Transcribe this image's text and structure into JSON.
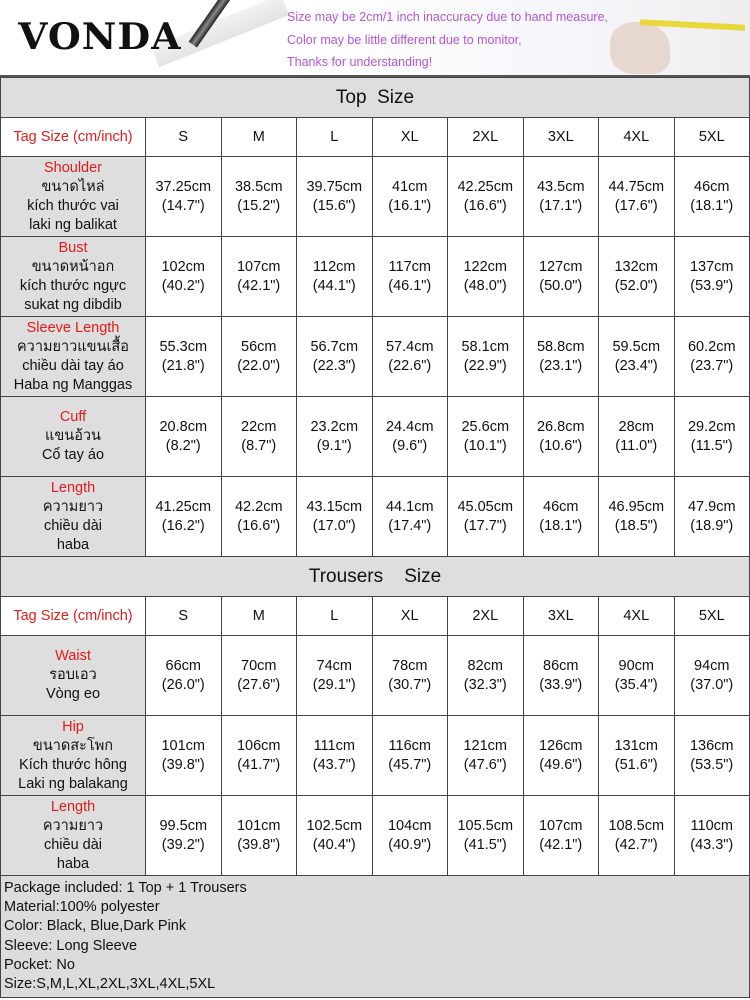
{
  "banner": {
    "logo": "VONDA",
    "notes": [
      "Size may be 2cm/1 inch inaccuracy due to hand measure,",
      "Color may be little different due to monitor,",
      "Thanks for understanding!"
    ],
    "note_color": "#b455d4"
  },
  "sizes": [
    "S",
    "M",
    "L",
    "XL",
    "2XL",
    "3XL",
    "4XL",
    "5XL"
  ],
  "tag_label": "Tag Size (cm/inch)",
  "accent_color": "#e31b1b",
  "tables": [
    {
      "title": "Top  Size",
      "rows": [
        {
          "label": "Shoulder",
          "sub": [
            "ขนาดไหล่",
            "kích thước vai",
            "laki ng balikat"
          ],
          "cm": [
            "37.25cm",
            "38.5cm",
            "39.75cm",
            "41cm",
            "42.25cm",
            "43.5cm",
            "44.75cm",
            "46cm"
          ],
          "inch": [
            "(14.7\")",
            "(15.2\")",
            "(15.6\")",
            "(16.1\")",
            "(16.6\")",
            "(17.1\")",
            "(17.6\")",
            "(18.1\")"
          ]
        },
        {
          "label": "Bust",
          "sub": [
            "ขนาดหน้าอก",
            "kích thước ngực",
            "sukat ng dibdib"
          ],
          "cm": [
            "102cm",
            "107cm",
            "112cm",
            "117cm",
            "122cm",
            "127cm",
            "132cm",
            "137cm"
          ],
          "inch": [
            "(40.2\")",
            "(42.1\")",
            "(44.1\")",
            "(46.1\")",
            "(48.0\")",
            "(50.0\")",
            "(52.0\")",
            "(53.9\")"
          ]
        },
        {
          "label": "Sleeve Length",
          "sub": [
            "ความยาวแขนเสื้อ",
            "chiều dài tay áo",
            "Haba ng Manggas"
          ],
          "cm": [
            "55.3cm",
            "56cm",
            "56.7cm",
            "57.4cm",
            "58.1cm",
            "58.8cm",
            "59.5cm",
            "60.2cm"
          ],
          "inch": [
            "(21.8\")",
            "(22.0\")",
            "(22.3\")",
            "(22.6\")",
            "(22.9\")",
            "(23.1\")",
            "(23.4\")",
            "(23.7\")"
          ]
        },
        {
          "label": "Cuff",
          "sub": [
            "แขนอ้วน",
            "Cổ tay áo"
          ],
          "cm": [
            "20.8cm",
            "22cm",
            "23.2cm",
            "24.4cm",
            "25.6cm",
            "26.8cm",
            "28cm",
            "29.2cm"
          ],
          "inch": [
            "(8.2\")",
            "(8.7\")",
            "(9.1\")",
            "(9.6\")",
            "(10.1\")",
            "(10.6\")",
            "(11.0\")",
            "(11.5\")"
          ]
        },
        {
          "label": "Length",
          "sub": [
            "ความยาว",
            "chiều dài",
            "haba"
          ],
          "cm": [
            "41.25cm",
            "42.2cm",
            "43.15cm",
            "44.1cm",
            "45.05cm",
            "46cm",
            "46.95cm",
            "47.9cm"
          ],
          "inch": [
            "(16.2\")",
            "(16.6\")",
            "(17.0\")",
            "(17.4\")",
            "(17.7\")",
            "(18.1\")",
            "(18.5\")",
            "(18.9\")"
          ]
        }
      ]
    },
    {
      "title": "Trousers    Size",
      "rows": [
        {
          "label": "Waist",
          "sub": [
            "รอบเอว",
            "Vòng eo"
          ],
          "cm": [
            "66cm",
            "70cm",
            "74cm",
            "78cm",
            "82cm",
            "86cm",
            "90cm",
            "94cm"
          ],
          "inch": [
            "(26.0\")",
            "(27.6\")",
            "(29.1\")",
            "(30.7\")",
            "(32.3\")",
            "(33.9\")",
            "(35.4\")",
            "(37.0\")"
          ]
        },
        {
          "label": "Hip",
          "sub": [
            "ขนาดสะโพก",
            "Kích thước hông",
            "Laki ng balakang"
          ],
          "cm": [
            "101cm",
            "106cm",
            "111cm",
            "116cm",
            "121cm",
            "126cm",
            "131cm",
            "136cm"
          ],
          "inch": [
            "(39.8\")",
            "(41.7\")",
            "(43.7\")",
            "(45.7\")",
            "(47.6\")",
            "(49.6\")",
            "(51.6\")",
            "(53.5\")"
          ]
        },
        {
          "label": "Length",
          "sub": [
            "ความยาว",
            "chiều dài",
            "haba"
          ],
          "cm": [
            "99.5cm",
            "101cm",
            "102.5cm",
            "104cm",
            "105.5cm",
            "107cm",
            "108.5cm",
            "110cm"
          ],
          "inch": [
            "(39.2\")",
            "(39.8\")",
            "(40.4\")",
            "(40.9\")",
            "(41.5\")",
            "(42.1\")",
            "(42.7\")",
            "(43.3\")"
          ]
        }
      ]
    }
  ],
  "footer": [
    "Package included: 1 Top + 1 Trousers",
    "Material:100% polyester",
    "Color: Black, Blue,Dark Pink",
    "Sleeve: Long Sleeve",
    "Pocket: No",
    "Size:S,M,L,XL,2XL,3XL,4XL,5XL"
  ]
}
